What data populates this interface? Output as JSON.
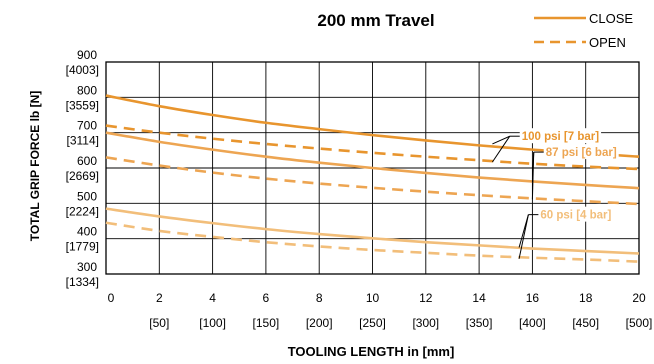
{
  "chart_data": {
    "type": "line",
    "title": "200 mm Travel",
    "xlabel": "TOOLING LENGTH in [mm]",
    "ylabel": "TOTAL GRIP FORCE lb [N]",
    "xlim": [
      0,
      20
    ],
    "ylim": [
      300,
      900
    ],
    "grid": true,
    "legend_position": "top-right",
    "x_ticks": [
      {
        "value": 0,
        "label": "0",
        "sub": ""
      },
      {
        "value": 2,
        "label": "2",
        "sub": "[50]"
      },
      {
        "value": 4,
        "label": "4",
        "sub": "[100]"
      },
      {
        "value": 6,
        "label": "6",
        "sub": "[150]"
      },
      {
        "value": 8,
        "label": "8",
        "sub": "[200]"
      },
      {
        "value": 10,
        "label": "10",
        "sub": "[250]"
      },
      {
        "value": 12,
        "label": "12",
        "sub": "[300]"
      },
      {
        "value": 14,
        "label": "14",
        "sub": "[350]"
      },
      {
        "value": 16,
        "label": "16",
        "sub": "[400]"
      },
      {
        "value": 18,
        "label": "18",
        "sub": "[450]"
      },
      {
        "value": 20,
        "label": "20",
        "sub": "[500]"
      }
    ],
    "y_ticks": [
      {
        "value": 300,
        "label": "300",
        "sub": "[1334]"
      },
      {
        "value": 400,
        "label": "400",
        "sub": "[1779]"
      },
      {
        "value": 500,
        "label": "500",
        "sub": "[2224]"
      },
      {
        "value": 600,
        "label": "600",
        "sub": "[2669]"
      },
      {
        "value": 700,
        "label": "700",
        "sub": "[3114]"
      },
      {
        "value": 800,
        "label": "800",
        "sub": "[3559]"
      },
      {
        "value": 900,
        "label": "900",
        "sub": "[4003]"
      }
    ],
    "legend": [
      {
        "label": "CLOSE",
        "style": "solid"
      },
      {
        "label": "OPEN",
        "style": "dashed"
      }
    ],
    "colors": {
      "p100": "#E8952E",
      "p87": "#EDA552",
      "p60": "#F2BE7A",
      "axis": "#000000",
      "annotation_arrow": "#000000"
    },
    "series": [
      {
        "pressure": "100 psi [7 bar]",
        "mode": "CLOSE",
        "color_key": "p100",
        "x": [
          0,
          2,
          4,
          6,
          8,
          10,
          12,
          14,
          16,
          18,
          20
        ],
        "y": [
          805,
          775,
          750,
          728,
          710,
          693,
          678,
          664,
          652,
          642,
          632
        ]
      },
      {
        "pressure": "100 psi [7 bar]",
        "mode": "OPEN",
        "color_key": "p100",
        "x": [
          0,
          2,
          4,
          6,
          8,
          10,
          12,
          14,
          16,
          18,
          20
        ],
        "y": [
          720,
          700,
          683,
          668,
          655,
          643,
          632,
          622,
          612,
          604,
          597
        ]
      },
      {
        "pressure": "87 psi [6 bar]",
        "mode": "CLOSE",
        "color_key": "p87",
        "x": [
          0,
          2,
          4,
          6,
          8,
          10,
          12,
          14,
          16,
          18,
          20
        ],
        "y": [
          700,
          674,
          652,
          632,
          615,
          600,
          586,
          573,
          562,
          552,
          543
        ]
      },
      {
        "pressure": "87 psi [6 bar]",
        "mode": "OPEN",
        "color_key": "p87",
        "x": [
          0,
          2,
          4,
          6,
          8,
          10,
          12,
          14,
          16,
          18,
          20
        ],
        "y": [
          630,
          607,
          587,
          570,
          556,
          544,
          533,
          523,
          514,
          506,
          498
        ]
      },
      {
        "pressure": "60 psi [4 bar]",
        "mode": "CLOSE",
        "color_key": "p60",
        "x": [
          0,
          2,
          4,
          6,
          8,
          10,
          12,
          14,
          16,
          18,
          20
        ],
        "y": [
          485,
          463,
          444,
          427,
          413,
          401,
          390,
          381,
          372,
          365,
          358
        ]
      },
      {
        "pressure": "60 psi [4 bar]",
        "mode": "OPEN",
        "color_key": "p60",
        "x": [
          0,
          2,
          4,
          6,
          8,
          10,
          12,
          14,
          16,
          18,
          20
        ],
        "y": [
          445,
          422,
          405,
          390,
          378,
          368,
          360,
          352,
          346,
          341,
          335
        ]
      }
    ],
    "annotations": [
      {
        "text": "100 psi [7 bar]",
        "color_key": "p100",
        "label_at": [
          15.6,
          690
        ],
        "arrow_targets": [
          [
            14.5,
            668
          ],
          [
            14.5,
            617
          ]
        ]
      },
      {
        "text": "87 psi [6 bar]",
        "color_key": "p87",
        "label_at": [
          16.5,
          645
        ],
        "arrow_targets": [
          [
            16,
            559
          ],
          [
            16,
            511
          ]
        ]
      },
      {
        "text": "60 psi [4 bar]",
        "color_key": "p60",
        "label_at": [
          16.3,
          468
        ],
        "arrow_targets": [
          [
            15.5,
            375
          ],
          [
            15.5,
            343
          ]
        ]
      }
    ]
  }
}
